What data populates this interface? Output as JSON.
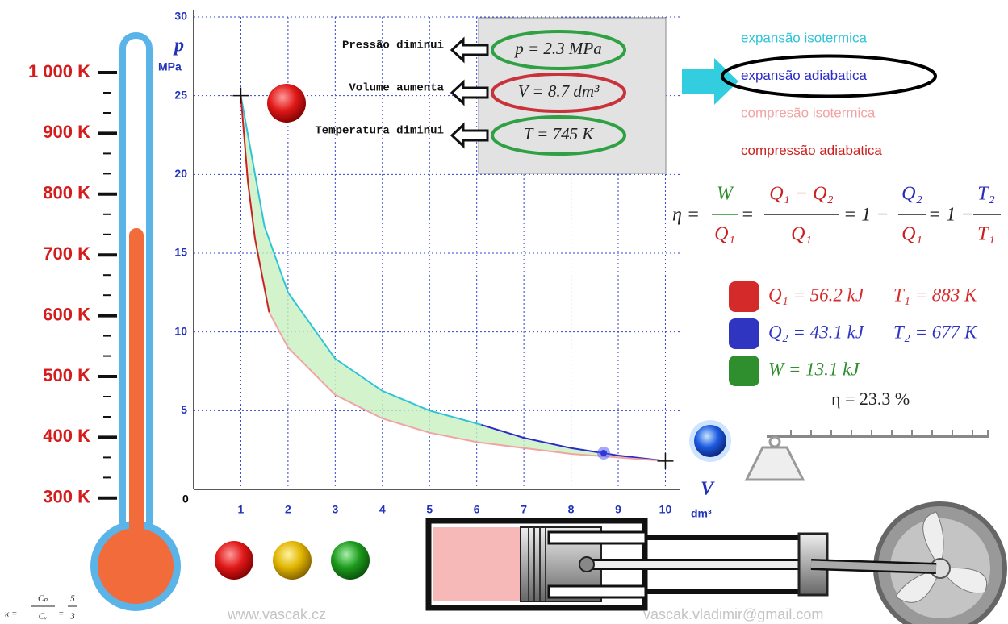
{
  "thermometer": {
    "labels": [
      "1 000 K",
      "900 K",
      "800 K",
      "700 K",
      "600 K",
      "500 K",
      "400 K",
      "300 K"
    ]
  },
  "kappa": {
    "lhs": "κ =",
    "num": "Cₚ",
    "den": "Cᵥ",
    "eq": "=",
    "frac_num": "5",
    "frac_den": "3"
  },
  "plot": {
    "y_label": "p",
    "y_unit": "MPa",
    "x_label": "V",
    "x_unit": "dm³",
    "origin_label": "0",
    "xlim": [
      0,
      10.3
    ],
    "ylim": [
      0,
      30
    ],
    "xticks": [
      1,
      2,
      3,
      4,
      5,
      6,
      7,
      8,
      9,
      10
    ],
    "yticks": [
      5,
      10,
      15,
      20,
      25,
      30
    ],
    "grid": true,
    "series": [
      {
        "name": "expansão isotermica",
        "color": "#2ec4d8",
        "x": [
          1,
          1.5,
          2,
          3,
          4,
          5,
          6.1
        ],
        "values": [
          25,
          16.7,
          12.5,
          8.3,
          6.25,
          5,
          4.1
        ]
      },
      {
        "name": "expansão adiabatica",
        "color": "#2b2bc8",
        "x": [
          6.1,
          7,
          8,
          9,
          10
        ],
        "values": [
          4.1,
          3.27,
          2.62,
          2.15,
          1.8
        ]
      },
      {
        "name": "compresão isotermica",
        "color": "#f2a3a3",
        "x": [
          10,
          8,
          6,
          5,
          4,
          3,
          2,
          1.6
        ],
        "values": [
          1.8,
          2.25,
          3,
          3.6,
          4.5,
          6,
          9,
          11.25
        ]
      },
      {
        "name": "compressão adiabatica",
        "color": "#cc1f1f",
        "x": [
          1.6,
          1.3,
          1.15,
          1
        ],
        "values": [
          11.25,
          15.9,
          19.5,
          25
        ]
      }
    ],
    "selected": 1
  },
  "readouts": [
    {
      "note": "Pressão diminui",
      "value": "p = 2.3 MPa",
      "ring": "#2fa043"
    },
    {
      "note": "Volume aumenta",
      "value": "V = 8.7 dm³",
      "ring": "#c8323a"
    },
    {
      "note": "Temperatura diminui",
      "value": "T = 745 K",
      "ring": "#2fa043"
    }
  ],
  "formula": {
    "lhs": "η =",
    "f1_num": "W",
    "f1_den": "Q₁",
    "eq1": "=",
    "f2_num": "Q₁ − Q₂",
    "f2_den": "Q₁",
    "eq2": "= 1 −",
    "f3_num": "Q₂",
    "f3_den": "Q₁",
    "eq3": "= 1 −",
    "f4_num": "T₂",
    "f4_den": "T₁"
  },
  "results": [
    {
      "heat": "Q₁ = 56.2 kJ",
      "temp": "T₁ = 883 K",
      "color": "#d42a2a"
    },
    {
      "heat": "Q₂ = 43.1 kJ",
      "temp": "T₂ = 677 K",
      "color": "#2f35c0"
    },
    {
      "heat": "W = 13.1 kJ",
      "color": "#2f8f2f"
    }
  ],
  "efficiency": "η  = 23.3 %",
  "footer": {
    "site": "www.vascak.cz",
    "email": "vascak.vladimir@gmail.com"
  }
}
